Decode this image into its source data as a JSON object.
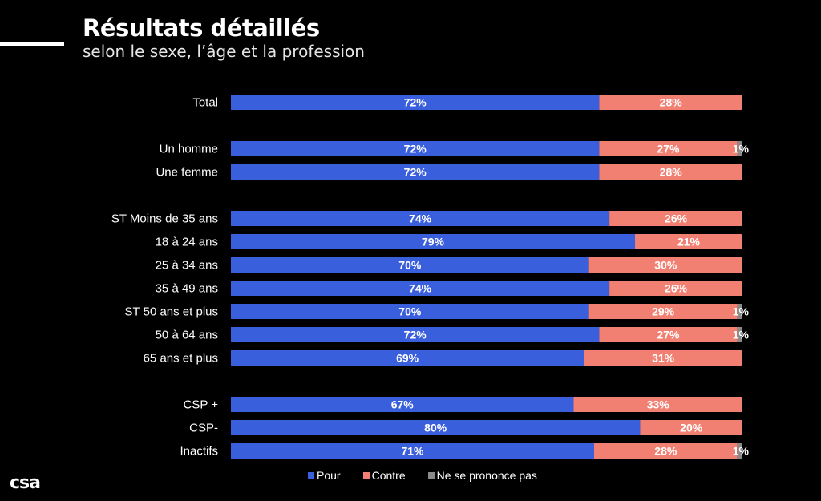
{
  "header": {
    "title": "Résultats détaillés",
    "subtitle": "selon le sexe, l’âge et la profession"
  },
  "logo_text": "csa",
  "colors": {
    "pour": "#3a5fdc",
    "contre": "#f28072",
    "nsp": "#8a8a8a"
  },
  "chart_data": {
    "type": "bar",
    "orientation": "horizontal-stacked-100",
    "series": [
      {
        "name": "Pour",
        "color": "#3a5fdc"
      },
      {
        "name": "Contre",
        "color": "#f28072"
      },
      {
        "name": "Ne se prononce pas",
        "color": "#8a8a8a"
      }
    ],
    "rows": [
      {
        "label": "Total",
        "values": [
          72,
          28,
          0
        ],
        "labels": [
          "72%",
          "28%",
          ""
        ]
      },
      {
        "label": "Un homme",
        "values": [
          72,
          27,
          1
        ],
        "labels": [
          "72%",
          "27%",
          "1%"
        ]
      },
      {
        "label": "Une femme",
        "values": [
          72,
          28,
          0
        ],
        "labels": [
          "72%",
          "28%",
          ""
        ]
      },
      {
        "label": "ST Moins de 35 ans",
        "values": [
          74,
          26,
          0
        ],
        "labels": [
          "74%",
          "26%",
          ""
        ]
      },
      {
        "label": "18 à 24 ans",
        "values": [
          79,
          21,
          0
        ],
        "labels": [
          "79%",
          "21%",
          ""
        ]
      },
      {
        "label": "25 à 34 ans",
        "values": [
          70,
          30,
          0
        ],
        "labels": [
          "70%",
          "30%",
          ""
        ]
      },
      {
        "label": "35 à 49 ans",
        "values": [
          74,
          26,
          0
        ],
        "labels": [
          "74%",
          "26%",
          ""
        ]
      },
      {
        "label": "ST 50 ans et plus",
        "values": [
          70,
          29,
          1
        ],
        "labels": [
          "70%",
          "29%",
          "1%"
        ]
      },
      {
        "label": "50 à 64 ans",
        "values": [
          72,
          27,
          1
        ],
        "labels": [
          "72%",
          "27%",
          "1%"
        ]
      },
      {
        "label": "65 ans et plus",
        "values": [
          69,
          31,
          0
        ],
        "labels": [
          "69%",
          "31%",
          ""
        ]
      },
      {
        "label": "CSP +",
        "values": [
          67,
          33,
          0
        ],
        "labels": [
          "67%",
          "33%",
          ""
        ]
      },
      {
        "label": "CSP-",
        "values": [
          80,
          20,
          0
        ],
        "labels": [
          "80%",
          "20%",
          ""
        ]
      },
      {
        "label": "Inactifs",
        "values": [
          71,
          28,
          1
        ],
        "labels": [
          "71%",
          "28%",
          "1%"
        ]
      }
    ],
    "xlim": [
      0,
      100
    ],
    "legend_position": "bottom"
  }
}
